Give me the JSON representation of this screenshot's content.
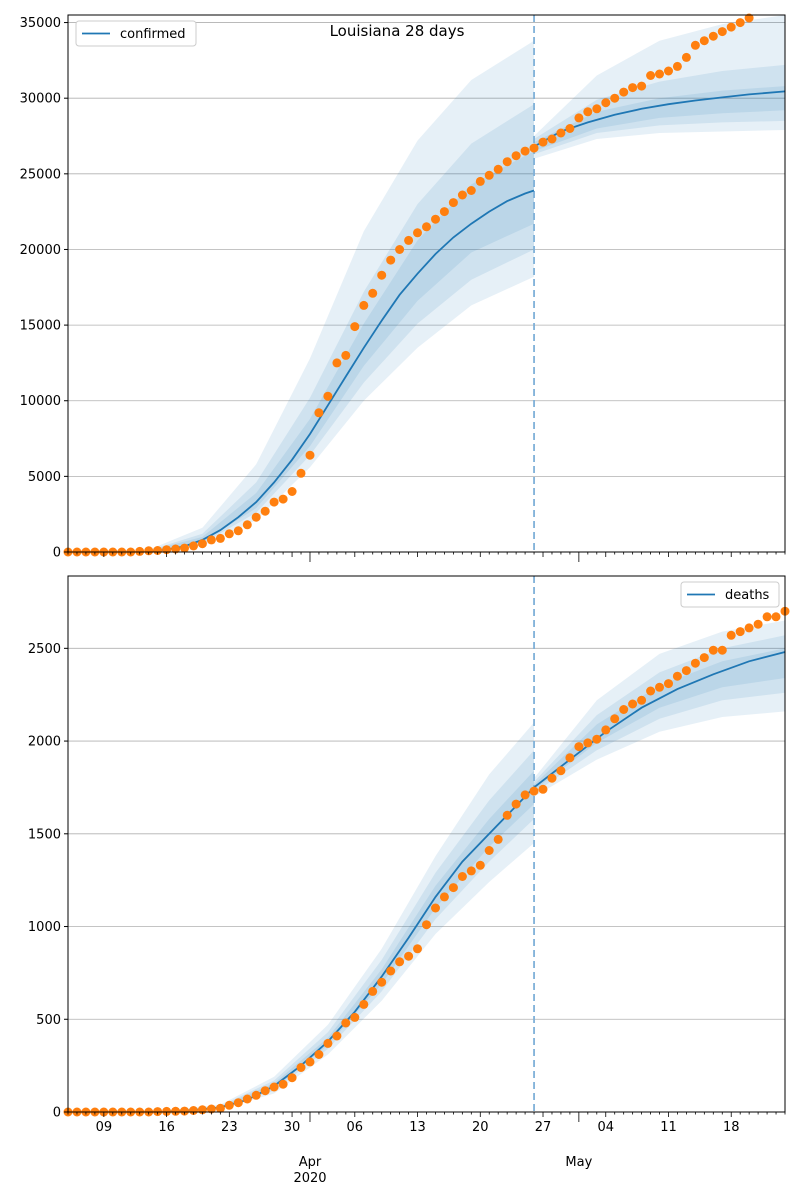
{
  "figure": {
    "title": "Louisiana 28 days"
  },
  "chart_data": [
    {
      "type": "line",
      "name": "confirmed",
      "title": "Louisiana 28 days",
      "xlabel": "",
      "ylabel": "",
      "x_range": [
        "2020-03-05",
        "2020-05-24"
      ],
      "ylim": [
        0,
        35500
      ],
      "yticks": [
        0,
        5000,
        10000,
        15000,
        20000,
        25000,
        30000,
        35000
      ],
      "grid": "horizontal",
      "legend": {
        "position": "top-left",
        "entries": [
          "confirmed"
        ]
      },
      "forecast_start": "2020-04-26",
      "colors": {
        "model": "#1f77b4",
        "observed": "#ff7f0e",
        "band": "#1f77b4",
        "vline": "#7fb0d8"
      },
      "model_line": {
        "dates": [
          "2020-03-14",
          "2020-03-16",
          "2020-03-18",
          "2020-03-20",
          "2020-03-22",
          "2020-03-24",
          "2020-03-26",
          "2020-03-28",
          "2020-03-30",
          "2020-04-01",
          "2020-04-03",
          "2020-04-05",
          "2020-04-07",
          "2020-04-09",
          "2020-04-11",
          "2020-04-13",
          "2020-04-15",
          "2020-04-17",
          "2020-04-19",
          "2020-04-21",
          "2020-04-23",
          "2020-04-25",
          "2020-04-26"
        ],
        "values": [
          40,
          150,
          380,
          800,
          1450,
          2300,
          3300,
          4600,
          6100,
          7800,
          9700,
          11600,
          13500,
          15300,
          17000,
          18400,
          19700,
          20800,
          21700,
          22500,
          23200,
          23700,
          23900
        ]
      },
      "forecast_line": {
        "dates": [
          "2020-04-26",
          "2020-04-29",
          "2020-05-02",
          "2020-05-05",
          "2020-05-08",
          "2020-05-11",
          "2020-05-14",
          "2020-05-17",
          "2020-05-20",
          "2020-05-24"
        ],
        "values": [
          26800,
          27800,
          28400,
          28900,
          29300,
          29600,
          29850,
          30050,
          30250,
          30450
        ]
      },
      "bands": [
        {
          "dates": [
            "2020-03-14",
            "2020-03-20",
            "2020-03-26",
            "2020-04-01",
            "2020-04-07",
            "2020-04-13",
            "2020-04-19",
            "2020-04-26"
          ],
          "lower": [
            10,
            400,
            2100,
            5600,
            10000,
            13500,
            16300,
            18200
          ],
          "upper": [
            150,
            1600,
            5800,
            12800,
            21200,
            27200,
            31200,
            33800
          ]
        },
        {
          "dates": [
            "2020-03-14",
            "2020-03-20",
            "2020-03-26",
            "2020-04-01",
            "2020-04-07",
            "2020-04-13",
            "2020-04-19",
            "2020-04-26"
          ],
          "lower": [
            20,
            550,
            2600,
            6400,
            11200,
            15100,
            18000,
            20000
          ],
          "upper": [
            100,
            1200,
            4600,
            10200,
            17200,
            23000,
            27000,
            29600
          ]
        },
        {
          "dates": [
            "2020-03-14",
            "2020-03-20",
            "2020-03-26",
            "2020-04-01",
            "2020-04-07",
            "2020-04-13",
            "2020-04-19",
            "2020-04-26"
          ],
          "lower": [
            30,
            650,
            2900,
            7000,
            12300,
            16600,
            19800,
            21700
          ],
          "upper": [
            70,
            1000,
            3900,
            8800,
            15100,
            20600,
            24300,
            26500
          ]
        },
        {
          "dates": [
            "2020-04-26",
            "2020-05-03",
            "2020-05-10",
            "2020-05-17",
            "2020-05-24"
          ],
          "lower": [
            26000,
            27300,
            27700,
            27800,
            27900
          ],
          "upper": [
            27500,
            31500,
            33800,
            34900,
            35500
          ]
        },
        {
          "dates": [
            "2020-04-26",
            "2020-05-03",
            "2020-05-10",
            "2020-05-17",
            "2020-05-24"
          ],
          "lower": [
            26300,
            27700,
            28200,
            28400,
            28500
          ],
          "upper": [
            27300,
            29900,
            31100,
            31800,
            32200
          ]
        },
        {
          "dates": [
            "2020-04-26",
            "2020-05-03",
            "2020-05-10",
            "2020-05-17",
            "2020-05-24"
          ],
          "lower": [
            26500,
            28000,
            28700,
            29000,
            29200
          ],
          "upper": [
            27100,
            29100,
            30000,
            30500,
            30800
          ]
        }
      ],
      "observed": {
        "start": "2020-03-05",
        "values": [
          0,
          0,
          0,
          0,
          0,
          0,
          0,
          0,
          40,
          80,
          100,
          150,
          200,
          260,
          400,
          550,
          800,
          900,
          1200,
          1400,
          1800,
          2300,
          2700,
          3300,
          3500,
          4000,
          5200,
          6400,
          9200,
          10300,
          12500,
          13000,
          14900,
          16300,
          17100,
          18300,
          19300,
          20000,
          20600,
          21100,
          21500,
          22000,
          22500,
          23100,
          23600,
          23900,
          24500,
          24900,
          25300,
          25800,
          26200,
          26500,
          26700,
          27100,
          27300,
          27700,
          28000,
          28700,
          29100,
          29300,
          29700,
          30000,
          30400,
          30700,
          30800,
          31500,
          31600,
          31800,
          32100,
          32700,
          33500,
          33800,
          34100,
          34400,
          34700,
          35000,
          35300
        ]
      }
    },
    {
      "type": "line",
      "name": "deaths",
      "xlabel": "",
      "ylabel": "",
      "x_range": [
        "2020-03-05",
        "2020-05-24"
      ],
      "ylim": [
        0,
        2890
      ],
      "yticks": [
        0,
        500,
        1000,
        1500,
        2000,
        2500
      ],
      "grid": "horizontal",
      "legend": {
        "position": "top-right",
        "entries": [
          "deaths"
        ]
      },
      "forecast_start": "2020-04-26",
      "xticks_minor_labels": [
        "09",
        "16",
        "23",
        "30",
        "06",
        "13",
        "20",
        "27",
        "04",
        "11",
        "18"
      ],
      "xticks_minor_dates": [
        "2020-03-09",
        "2020-03-16",
        "2020-03-23",
        "2020-03-30",
        "2020-04-06",
        "2020-04-13",
        "2020-04-20",
        "2020-04-27",
        "2020-05-04",
        "2020-05-11",
        "2020-05-18"
      ],
      "xticks_major": [
        {
          "date": "2020-04-01",
          "label": "Apr",
          "year": "2020"
        },
        {
          "date": "2020-05-01",
          "label": "May",
          "year": ""
        }
      ],
      "model_line": {
        "dates": [
          "2020-03-16",
          "2020-03-19",
          "2020-03-22",
          "2020-03-25",
          "2020-03-28",
          "2020-03-31",
          "2020-04-03",
          "2020-04-06",
          "2020-04-09",
          "2020-04-12",
          "2020-04-15",
          "2020-04-18",
          "2020-04-21",
          "2020-04-24",
          "2020-04-26"
        ],
        "values": [
          3,
          10,
          25,
          65,
          140,
          250,
          380,
          540,
          730,
          940,
          1160,
          1350,
          1500,
          1650,
          1750
        ]
      },
      "forecast_line": {
        "dates": [
          "2020-04-26",
          "2020-04-30",
          "2020-05-04",
          "2020-05-08",
          "2020-05-12",
          "2020-05-16",
          "2020-05-20",
          "2020-05-24"
        ],
        "values": [
          1750,
          1900,
          2050,
          2180,
          2280,
          2360,
          2430,
          2480
        ]
      },
      "bands": [
        {
          "dates": [
            "2020-03-16",
            "2020-03-22",
            "2020-03-28",
            "2020-04-03",
            "2020-04-09",
            "2020-04-15",
            "2020-04-21",
            "2020-04-26"
          ],
          "lower": [
            1,
            15,
            100,
            310,
            600,
            960,
            1240,
            1450
          ],
          "upper": [
            6,
            40,
            190,
            470,
            880,
            1380,
            1820,
            2100
          ]
        },
        {
          "dates": [
            "2020-03-16",
            "2020-03-22",
            "2020-03-28",
            "2020-04-03",
            "2020-04-09",
            "2020-04-15",
            "2020-04-21",
            "2020-04-26"
          ],
          "lower": [
            2,
            18,
            115,
            340,
            650,
            1040,
            1350,
            1580
          ],
          "upper": [
            5,
            34,
            170,
            430,
            820,
            1290,
            1680,
            1950
          ]
        },
        {
          "dates": [
            "2020-03-16",
            "2020-03-22",
            "2020-03-28",
            "2020-04-03",
            "2020-04-09",
            "2020-04-15",
            "2020-04-21",
            "2020-04-26"
          ],
          "lower": [
            2,
            21,
            125,
            360,
            690,
            1100,
            1430,
            1660
          ],
          "upper": [
            4,
            29,
            155,
            400,
            770,
            1220,
            1580,
            1840
          ]
        },
        {
          "dates": [
            "2020-04-26",
            "2020-05-03",
            "2020-05-10",
            "2020-05-17",
            "2020-05-24"
          ],
          "lower": [
            1700,
            1900,
            2050,
            2130,
            2160
          ],
          "upper": [
            1800,
            2220,
            2470,
            2590,
            2650
          ]
        },
        {
          "dates": [
            "2020-04-26",
            "2020-05-03",
            "2020-05-10",
            "2020-05-17",
            "2020-05-24"
          ],
          "lower": [
            1720,
            1950,
            2120,
            2220,
            2260
          ],
          "upper": [
            1780,
            2140,
            2370,
            2500,
            2570
          ]
        },
        {
          "dates": [
            "2020-04-26",
            "2020-05-03",
            "2020-05-10",
            "2020-05-17",
            "2020-05-24"
          ],
          "lower": [
            1735,
            1990,
            2180,
            2290,
            2340
          ],
          "upper": [
            1765,
            2090,
            2300,
            2430,
            2500
          ]
        }
      ],
      "observed": {
        "start": "2020-03-05",
        "values": [
          0,
          0,
          0,
          0,
          0,
          0,
          0,
          0,
          0,
          0,
          2,
          3,
          4,
          5,
          8,
          12,
          16,
          20,
          36,
          50,
          70,
          90,
          115,
          135,
          150,
          185,
          240,
          270,
          310,
          370,
          410,
          480,
          510,
          580,
          650,
          700,
          760,
          810,
          840,
          880,
          1010,
          1100,
          1160,
          1210,
          1270,
          1300,
          1330,
          1410,
          1470,
          1600,
          1660,
          1710,
          1730,
          1740,
          1800,
          1840,
          1910,
          1970,
          1990,
          2010,
          2060,
          2120,
          2170,
          2200,
          2220,
          2270,
          2290,
          2310,
          2350,
          2380,
          2420,
          2450,
          2490,
          2490,
          2570,
          2590,
          2610,
          2630,
          2670,
          2670,
          2700
        ]
      }
    }
  ]
}
